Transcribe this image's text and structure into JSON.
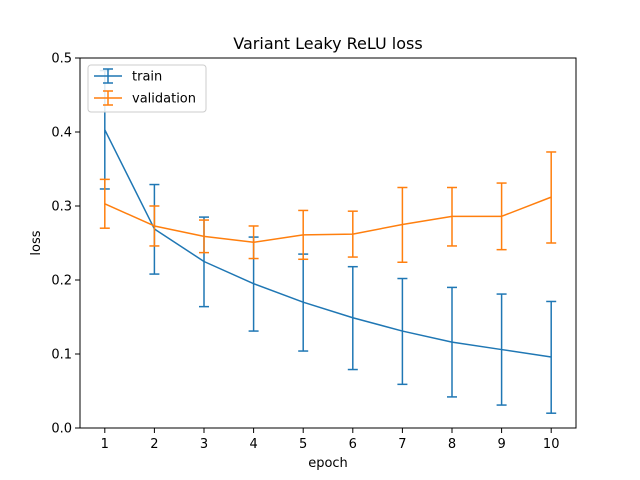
{
  "chart_data": {
    "type": "line",
    "title": "Variant Leaky ReLU loss",
    "xlabel": "epoch",
    "ylabel": "loss",
    "x": [
      1,
      2,
      3,
      4,
      5,
      6,
      7,
      8,
      9,
      10
    ],
    "xlim": [
      0.5,
      10.5
    ],
    "ylim": [
      0,
      0.5
    ],
    "xticks": [
      "1",
      "2",
      "3",
      "4",
      "5",
      "6",
      "7",
      "8",
      "9",
      "10"
    ],
    "yticks": [
      "0.0",
      "0.1",
      "0.2",
      "0.3",
      "0.4",
      "0.5"
    ],
    "grid": false,
    "legend_position": "top-left",
    "series": [
      {
        "name": "train",
        "color": "#1f77b4",
        "values": [
          0.403,
          0.269,
          0.225,
          0.195,
          0.17,
          0.149,
          0.131,
          0.116,
          0.106,
          0.096
        ],
        "err_low": [
          0.323,
          0.208,
          0.164,
          0.131,
          0.104,
          0.079,
          0.059,
          0.042,
          0.031,
          0.02
        ],
        "err_high": [
          0.483,
          0.329,
          0.285,
          0.258,
          0.235,
          0.218,
          0.202,
          0.19,
          0.181,
          0.171
        ]
      },
      {
        "name": "validation",
        "color": "#ff7f0e",
        "values": [
          0.303,
          0.273,
          0.259,
          0.251,
          0.261,
          0.262,
          0.275,
          0.286,
          0.286,
          0.312
        ],
        "err_low": [
          0.27,
          0.246,
          0.237,
          0.229,
          0.228,
          0.231,
          0.224,
          0.246,
          0.241,
          0.25
        ],
        "err_high": [
          0.336,
          0.3,
          0.281,
          0.273,
          0.294,
          0.293,
          0.325,
          0.325,
          0.331,
          0.373
        ]
      }
    ]
  }
}
